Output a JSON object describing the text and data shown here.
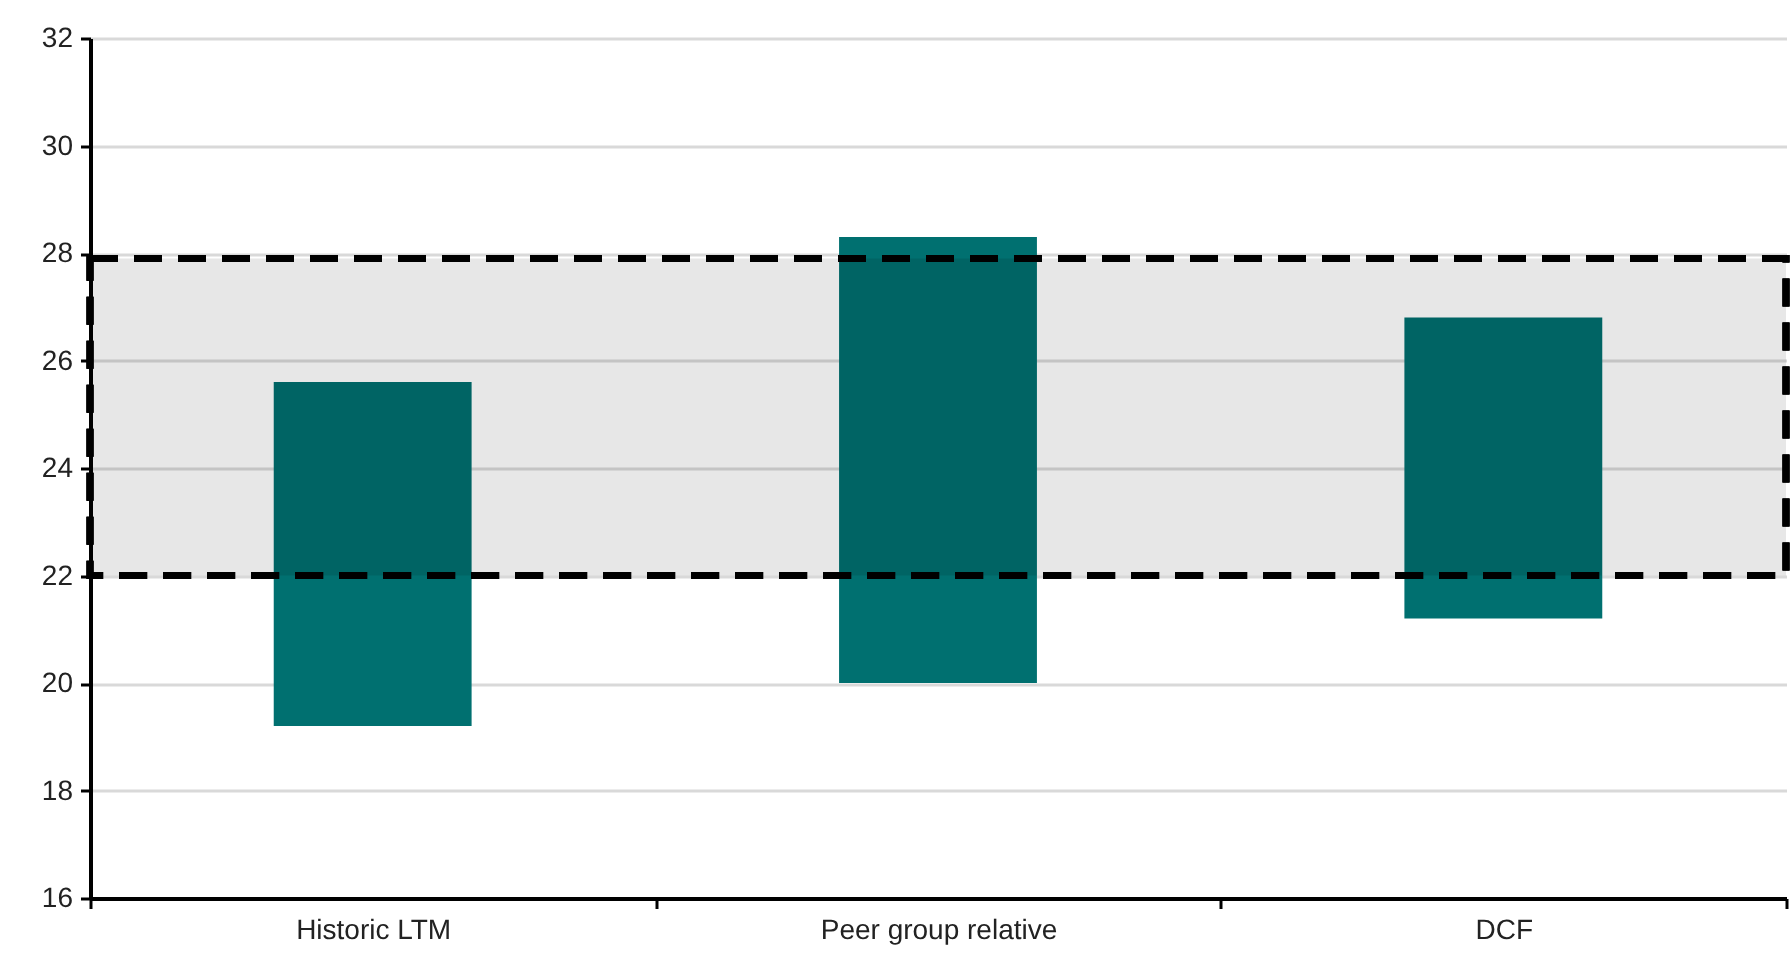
{
  "chart_data": {
    "type": "bar",
    "categories": [
      "Historic LTM",
      "Peer group relative",
      "DCF"
    ],
    "values": [
      6.4,
      8.3,
      5.6
    ],
    "base": [
      19.2,
      20.0,
      21.2
    ],
    "color": "#007070",
    "ylim": [
      16,
      32
    ],
    "yticks": [
      16,
      18,
      20,
      22,
      24,
      26,
      28,
      30,
      32
    ],
    "grid": "y",
    "bands": [
      {
        "axis": "y",
        "from": 22.0,
        "to": 27.9,
        "color": "#000000"
      }
    ]
  }
}
